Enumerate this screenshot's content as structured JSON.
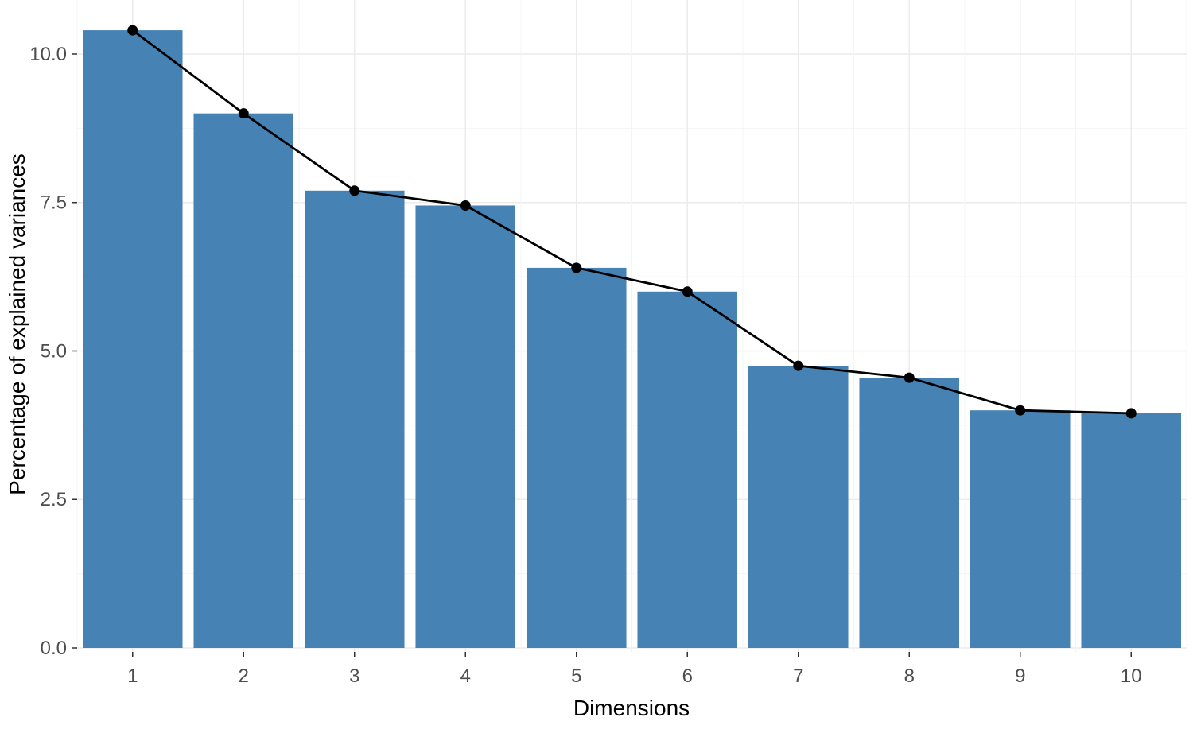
{
  "figure": {
    "background": "#ffffff"
  },
  "chart_data": {
    "type": "bar",
    "subtype": "scree-plot-with-line-overlay",
    "xlabel": "Dimensions",
    "ylabel": "Percentage of explained variances",
    "categories": [
      "1",
      "2",
      "3",
      "4",
      "5",
      "6",
      "7",
      "8",
      "9",
      "10"
    ],
    "values": [
      10.4,
      9.0,
      7.7,
      7.45,
      6.4,
      6.0,
      4.75,
      4.55,
      4.0,
      3.95
    ],
    "line_overlay": true,
    "bar_color": "#4682B4",
    "line_color": "#000000",
    "point_color": "#000000",
    "yticks": [
      0.0,
      2.5,
      5.0,
      7.5,
      10.0
    ],
    "ytick_labels": [
      "0.0",
      "2.5",
      "5.0",
      "7.5",
      "10.0"
    ],
    "ylim": [
      0,
      10.91
    ],
    "grid": true,
    "grid_color": "#ebebeb",
    "minor_grid_color": "#f4f4f4",
    "tick_color": "#333333",
    "legend_position": "none"
  }
}
